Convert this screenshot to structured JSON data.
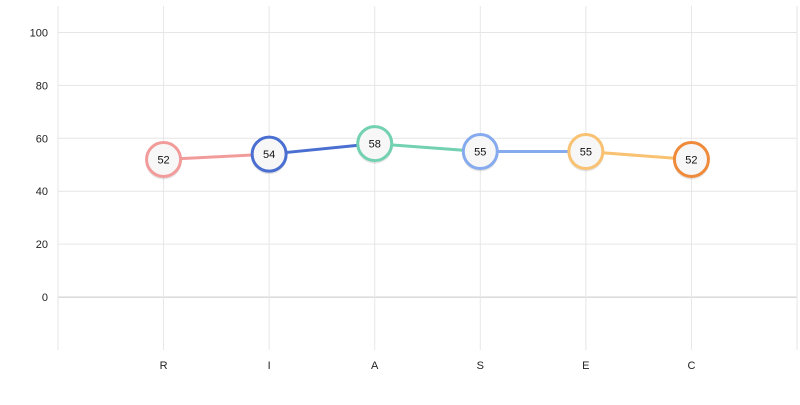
{
  "chart_data": {
    "type": "line",
    "categories": [
      "R",
      "I",
      "A",
      "S",
      "E",
      "C"
    ],
    "values": [
      52,
      54,
      58,
      55,
      55,
      52
    ],
    "point_labels": [
      "52",
      "54",
      "58",
      "55",
      "55",
      "52"
    ],
    "point_colors": [
      "#f29b9b",
      "#4a6fd0",
      "#71d1b0",
      "#86aaee",
      "#f8c272",
      "#ef8a3a"
    ],
    "segment_colors": [
      "#f29b9b",
      "#4a6fd0",
      "#71d1b0",
      "#86aaee",
      "#f8c272"
    ],
    "ylim": [
      -20,
      110
    ],
    "yticks": [
      0,
      20,
      40,
      60,
      80,
      100
    ],
    "ytick_labels": [
      "0",
      "20",
      "40",
      "60",
      "80",
      "100"
    ],
    "grid": true,
    "title": "",
    "xlabel": "",
    "ylabel": ""
  }
}
